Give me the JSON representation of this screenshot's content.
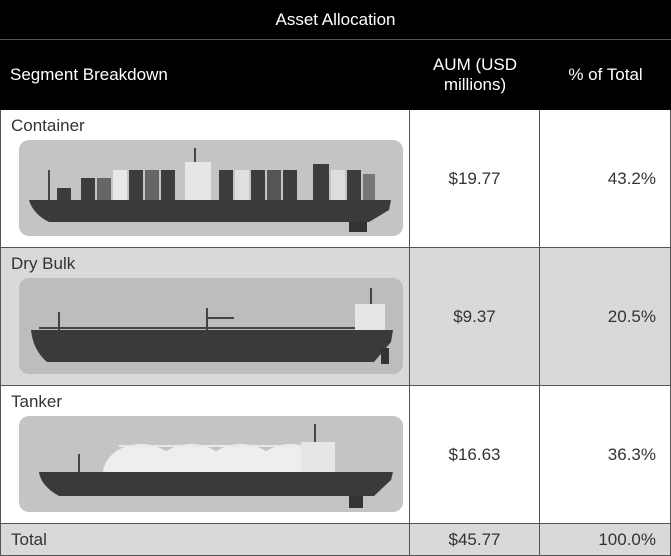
{
  "table": {
    "title": "Asset Allocation",
    "columns": [
      "Segment Breakdown",
      "AUM (USD millions)",
      "% of Total"
    ],
    "rows": [
      [
        "Container",
        "$19.77",
        "43.2%"
      ],
      [
        "Dry Bulk",
        "$9.37",
        "20.5%"
      ],
      [
        "Tanker",
        "$16.63",
        "36.3%"
      ]
    ],
    "total": [
      "Total",
      "$45.77",
      "100.0%"
    ]
  }
}
